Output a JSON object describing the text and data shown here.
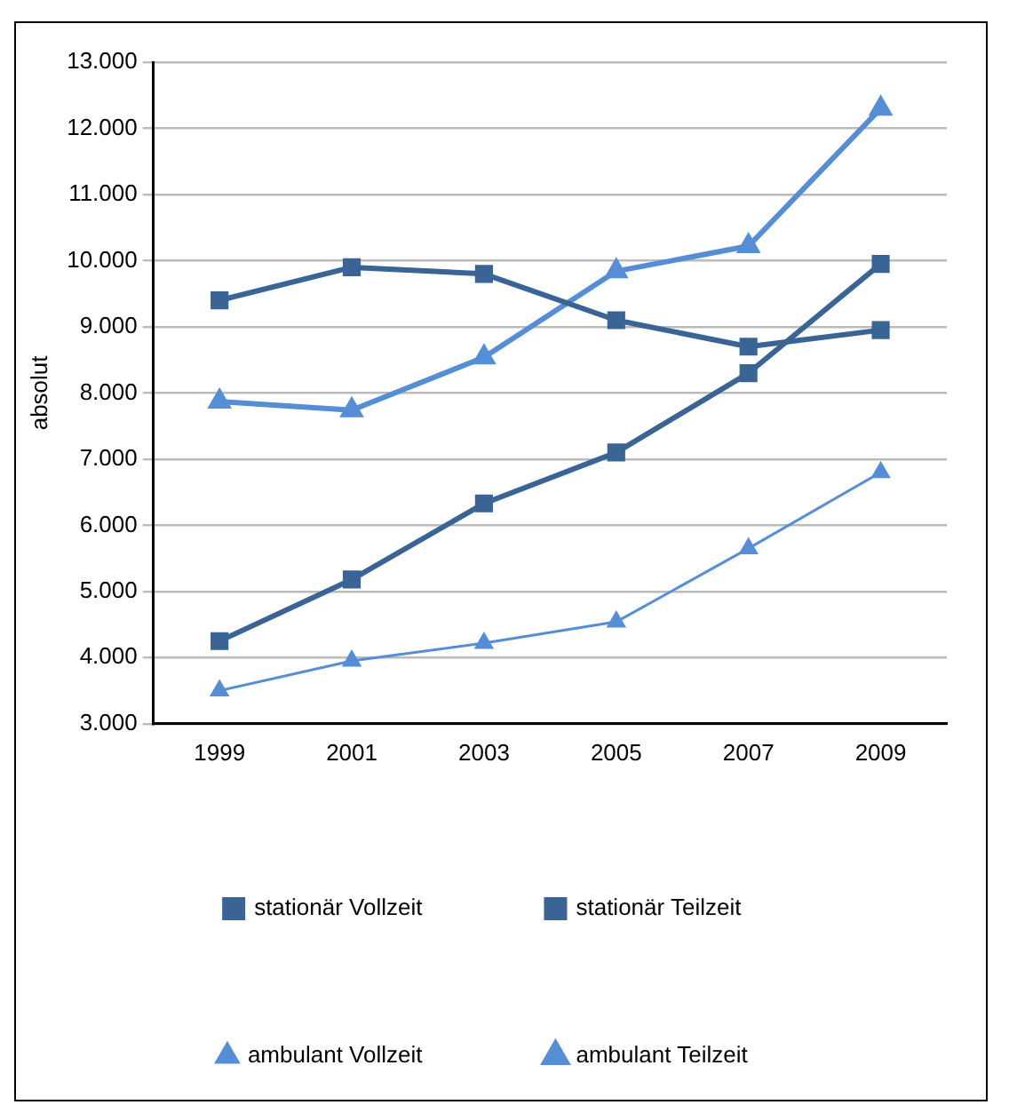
{
  "chart_data": {
    "type": "line",
    "ylabel": "absolut",
    "categories": [
      "1999",
      "2001",
      "2003",
      "2005",
      "2007",
      "2009"
    ],
    "series": [
      {
        "name": "stationär Vollzeit",
        "color": "#3a6496",
        "marker": "square",
        "values": [
          9400,
          9900,
          9800,
          9100,
          8700,
          8950
        ]
      },
      {
        "name": "stationär Teilzeit",
        "color": "#3a6496",
        "marker": "square",
        "values": [
          4250,
          5180,
          6330,
          7100,
          8300,
          9950
        ]
      },
      {
        "name": "ambulant Vollzeit",
        "color": "#558ed5",
        "marker": "triangle",
        "values": [
          3500,
          3950,
          4220,
          4540,
          5650,
          6800
        ]
      },
      {
        "name": "ambulant Teilzeit",
        "color": "#558ed5",
        "marker": "triangle",
        "values": [
          7870,
          7740,
          8540,
          9840,
          10220,
          12300
        ]
      }
    ],
    "ylim": [
      3000,
      13000
    ],
    "yticks": [
      {
        "value": 3000,
        "label": "3.000"
      },
      {
        "value": 4000,
        "label": "4.000"
      },
      {
        "value": 5000,
        "label": "5.000"
      },
      {
        "value": 6000,
        "label": "6.000"
      },
      {
        "value": 7000,
        "label": "7.000"
      },
      {
        "value": 8000,
        "label": "8.000"
      },
      {
        "value": 9000,
        "label": "9.000"
      },
      {
        "value": 10000,
        "label": "10.000"
      },
      {
        "value": 11000,
        "label": "11.000"
      },
      {
        "value": 12000,
        "label": "12.000"
      },
      {
        "value": 13000,
        "label": "13.000"
      }
    ],
    "grid": "y",
    "legend": "bottom",
    "line_style": "solid"
  }
}
